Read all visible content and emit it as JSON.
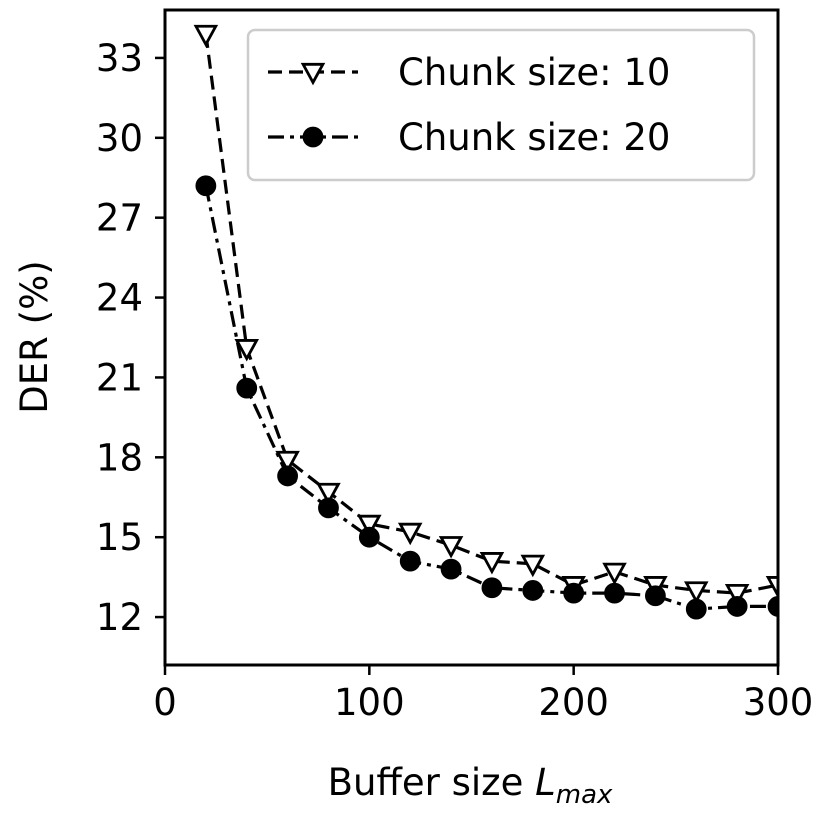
{
  "chart_data": {
    "type": "line",
    "xlabel_main": "Buffer size ",
    "xlabel_math_base": "L",
    "xlabel_math_sub": "max",
    "ylabel": "DER (%)",
    "xlim": [
      0,
      300
    ],
    "ylim": [
      10.2,
      34.8
    ],
    "xticks": [
      0,
      100,
      200,
      300
    ],
    "yticks": [
      12,
      15,
      18,
      21,
      24,
      27,
      30,
      33
    ],
    "grid": false,
    "legend_position": "top-right",
    "series": [
      {
        "name": "Chunk size: 10",
        "marker": "triangle-down-open",
        "line_style": "dashed",
        "color": "#000000",
        "x": [
          20,
          40,
          60,
          80,
          100,
          120,
          140,
          160,
          180,
          200,
          220,
          240,
          260,
          280,
          300
        ],
        "y": [
          33.9,
          22.1,
          17.9,
          16.7,
          15.5,
          15.2,
          14.7,
          14.1,
          14.0,
          13.2,
          13.7,
          13.2,
          13.0,
          12.9,
          13.2
        ]
      },
      {
        "name": "Chunk size: 20",
        "marker": "circle-filled",
        "line_style": "dashdot",
        "color": "#000000",
        "x": [
          20,
          40,
          60,
          80,
          100,
          120,
          140,
          160,
          180,
          200,
          220,
          240,
          260,
          280,
          300
        ],
        "y": [
          28.2,
          20.6,
          17.3,
          16.1,
          15.0,
          14.1,
          13.8,
          13.1,
          13.0,
          12.9,
          12.9,
          12.8,
          12.3,
          12.4,
          12.4
        ]
      }
    ]
  }
}
